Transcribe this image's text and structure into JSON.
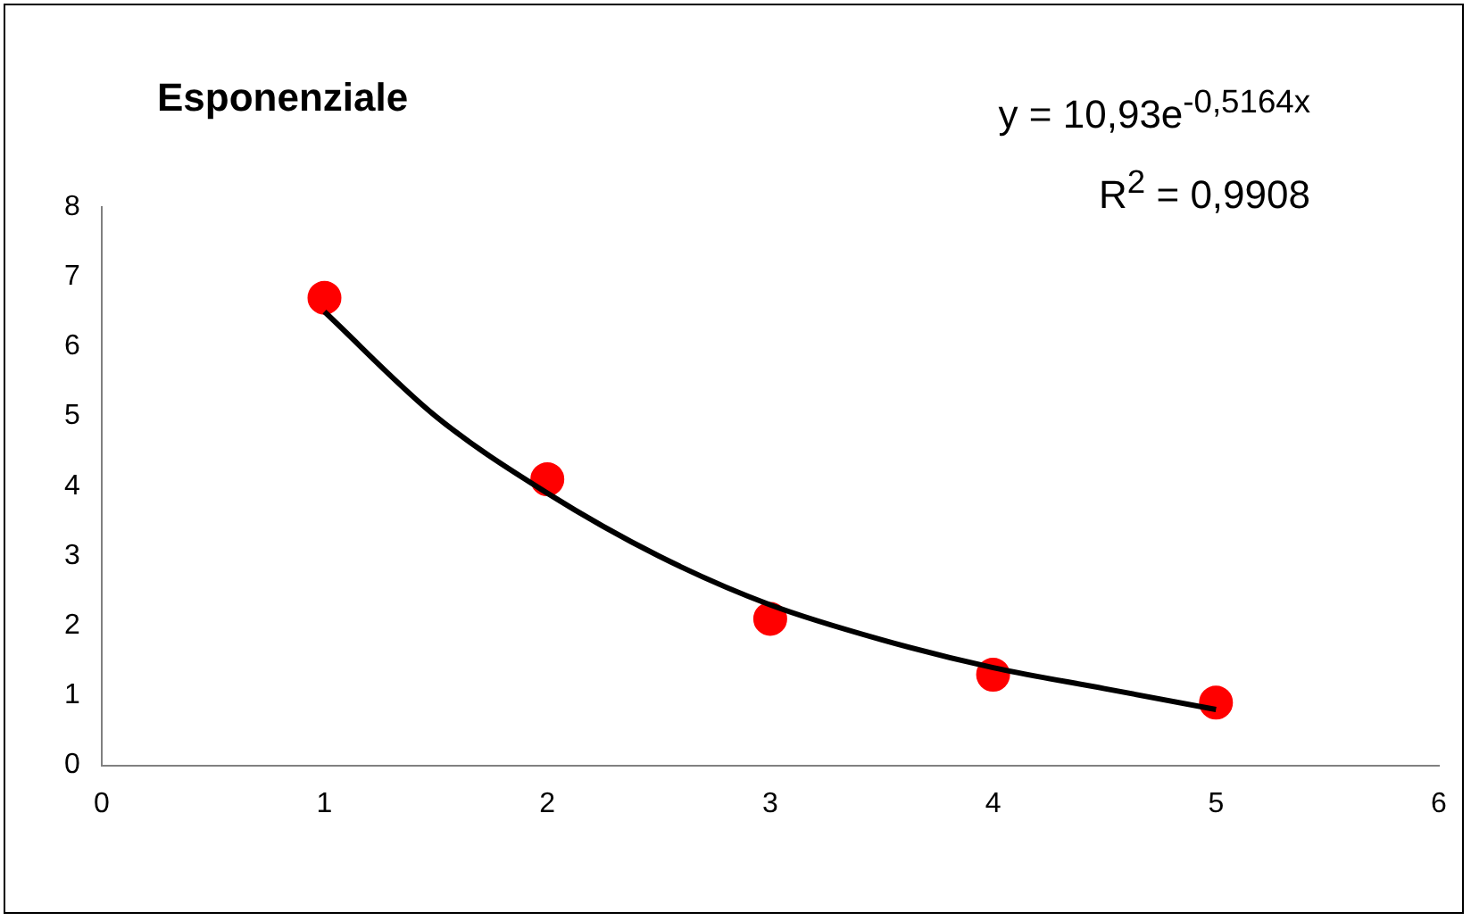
{
  "chart_data": {
    "type": "scatter",
    "title": "Esponenziale",
    "annotations": [
      "y = 10,93e$^{-0,5164x}$",
      "R$^{2}$ = 0,9908"
    ],
    "xlim": [
      0,
      6
    ],
    "xticks": [
      0,
      1,
      2,
      3,
      4,
      5,
      6
    ],
    "ylim": [
      0,
      8
    ],
    "yticks": [
      0,
      1,
      2,
      3,
      4,
      5,
      6,
      7,
      8
    ],
    "grid": false,
    "legend": false,
    "series": [
      {
        "marker": "circle",
        "color": "#ff0000",
        "x": [
          1,
          2,
          3,
          4,
          5
        ],
        "values": [
          6.7,
          4.1,
          2.1,
          1.3,
          0.9
        ]
      },
      {
        "type": "line",
        "color": "#000000",
        "x": [
          1,
          1.5,
          2,
          2.5,
          3,
          3.5,
          4,
          4.5,
          5
        ],
        "values": [
          6.5,
          5.0,
          3.9,
          3.0,
          2.3,
          1.8,
          1.4,
          1.1,
          0.8
        ]
      }
    ]
  }
}
